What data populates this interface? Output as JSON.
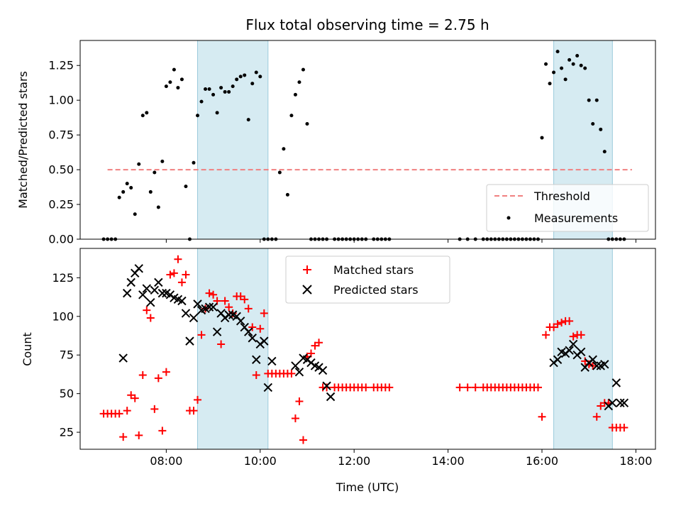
{
  "chart_data": [
    {
      "type": "scatter",
      "title": "Flux total observing time = 2.75 h",
      "xlabel": "",
      "ylabel": "Matched/Predicted stars",
      "xlim": [
        "06:10",
        "18:25"
      ],
      "ylim": [
        0,
        1.43
      ],
      "yticks": [
        "0.00",
        "0.25",
        "0.50",
        "0.75",
        "1.00",
        "1.25"
      ],
      "legend": {
        "placement": "lower-right",
        "entries": [
          {
            "name": "Threshold",
            "marker": "dashed-line",
            "color": "#f08080"
          },
          {
            "name": "Measurements",
            "marker": "dot",
            "color": "#000000"
          }
        ]
      },
      "shaded_spans": [
        [
          "08:40",
          "10:10"
        ],
        [
          "16:15",
          "17:30"
        ]
      ],
      "threshold": {
        "name": "Threshold",
        "y": 0.5,
        "x_range": [
          "06:45",
          "17:55"
        ],
        "color": "#f08080"
      },
      "series": [
        {
          "name": "Measurements",
          "color": "#000000",
          "x": [
            "06:40",
            "06:45",
            "06:50",
            "06:55",
            "07:00",
            "07:05",
            "07:10",
            "07:15",
            "07:20",
            "07:25",
            "07:30",
            "07:35",
            "07:40",
            "07:45",
            "07:50",
            "07:55",
            "08:00",
            "08:05",
            "08:10",
            "08:15",
            "08:20",
            "08:25",
            "08:30",
            "08:35",
            "08:40",
            "08:45",
            "08:50",
            "08:55",
            "09:00",
            "09:05",
            "09:10",
            "09:15",
            "09:20",
            "09:25",
            "09:30",
            "09:35",
            "09:40",
            "09:45",
            "09:50",
            "09:55",
            "10:00",
            "10:05",
            "10:10",
            "10:15",
            "10:20",
            "10:25",
            "10:30",
            "10:35",
            "10:40",
            "10:45",
            "10:50",
            "10:55",
            "11:00",
            "11:05",
            "11:10",
            "11:15",
            "11:20",
            "11:25",
            "11:35",
            "11:40",
            "11:45",
            "11:50",
            "11:55",
            "12:00",
            "12:05",
            "12:10",
            "12:15",
            "12:25",
            "12:30",
            "12:35",
            "12:40",
            "12:45",
            "14:15",
            "14:25",
            "14:35",
            "14:45",
            "14:50",
            "14:55",
            "15:00",
            "15:05",
            "15:10",
            "15:15",
            "15:20",
            "15:25",
            "15:30",
            "15:35",
            "15:40",
            "15:45",
            "15:50",
            "15:55",
            "16:00",
            "16:05",
            "16:10",
            "16:15",
            "16:20",
            "16:25",
            "16:30",
            "16:35",
            "16:40",
            "16:45",
            "16:50",
            "16:55",
            "17:00",
            "17:05",
            "17:10",
            "17:15",
            "17:20",
            "17:25",
            "17:30",
            "17:35",
            "17:40",
            "17:45"
          ],
          "y": [
            0.0,
            0.0,
            0.0,
            0.0,
            0.3,
            0.34,
            0.4,
            0.37,
            0.18,
            0.54,
            0.89,
            0.91,
            0.34,
            0.48,
            0.23,
            0.56,
            1.1,
            1.13,
            1.22,
            1.09,
            1.15,
            0.38,
            0.0,
            0.55,
            0.89,
            0.99,
            1.08,
            1.08,
            1.04,
            0.91,
            1.09,
            1.06,
            1.06,
            1.1,
            1.15,
            1.17,
            1.18,
            0.86,
            1.12,
            1.2,
            1.17,
            0.0,
            0.0,
            0.0,
            0.0,
            0.48,
            0.65,
            0.32,
            0.89,
            1.04,
            1.13,
            1.22,
            0.83,
            0.0,
            0.0,
            0.0,
            0.0,
            0.0,
            0.0,
            0.0,
            0.0,
            0.0,
            0.0,
            0.0,
            0.0,
            0.0,
            0.0,
            0.0,
            0.0,
            0.0,
            0.0,
            0.0,
            0.0,
            0.0,
            0.0,
            0.0,
            0.0,
            0.0,
            0.0,
            0.0,
            0.0,
            0.0,
            0.0,
            0.0,
            0.0,
            0.0,
            0.0,
            0.0,
            0.0,
            0.0,
            0.73,
            1.26,
            1.12,
            1.2,
            1.35,
            1.23,
            1.15,
            1.29,
            1.26,
            1.32,
            1.25,
            1.23,
            1.0,
            0.83,
            1.0,
            0.79,
            0.63,
            0.0,
            0.0,
            0.0,
            0.0,
            0.0
          ]
        }
      ]
    },
    {
      "type": "scatter",
      "title": "",
      "xlabel": "Time (UTC)",
      "ylabel": "Count",
      "xlim": [
        "06:10",
        "18:25"
      ],
      "ylim": [
        14,
        144
      ],
      "yticks": [
        "25",
        "50",
        "75",
        "100",
        "125"
      ],
      "xticks": [
        "08:00",
        "10:00",
        "12:00",
        "14:00",
        "16:00",
        "18:00"
      ],
      "legend": {
        "placement": "upper-center",
        "entries": [
          {
            "name": "Matched stars",
            "marker": "plus",
            "color": "#ff0000"
          },
          {
            "name": "Predicted stars",
            "marker": "x",
            "color": "#000000"
          }
        ]
      },
      "shaded_spans": [
        [
          "08:40",
          "10:10"
        ],
        [
          "16:15",
          "17:30"
        ]
      ],
      "series": [
        {
          "name": "Matched stars",
          "color": "#ff0000",
          "x": [
            "06:40",
            "06:45",
            "06:50",
            "06:55",
            "07:00",
            "07:05",
            "07:10",
            "07:15",
            "07:20",
            "07:25",
            "07:30",
            "07:35",
            "07:40",
            "07:45",
            "07:50",
            "07:55",
            "08:00",
            "08:05",
            "08:10",
            "08:15",
            "08:20",
            "08:25",
            "08:30",
            "08:35",
            "08:40",
            "08:45",
            "08:50",
            "08:55",
            "09:00",
            "09:05",
            "09:10",
            "09:15",
            "09:20",
            "09:25",
            "09:30",
            "09:35",
            "09:40",
            "09:45",
            "09:50",
            "09:55",
            "10:00",
            "10:05",
            "10:10",
            "10:15",
            "10:20",
            "10:25",
            "10:30",
            "10:35",
            "10:40",
            "10:45",
            "10:50",
            "10:55",
            "11:00",
            "11:05",
            "11:10",
            "11:15",
            "11:20",
            "11:25",
            "11:35",
            "11:40",
            "11:45",
            "11:50",
            "11:55",
            "12:00",
            "12:05",
            "12:10",
            "12:15",
            "12:25",
            "12:30",
            "12:35",
            "12:40",
            "12:45",
            "14:15",
            "14:25",
            "14:35",
            "14:45",
            "14:50",
            "14:55",
            "15:00",
            "15:05",
            "15:10",
            "15:15",
            "15:20",
            "15:25",
            "15:30",
            "15:35",
            "15:40",
            "15:45",
            "15:50",
            "15:55",
            "16:00",
            "16:05",
            "16:10",
            "16:15",
            "16:20",
            "16:25",
            "16:30",
            "16:35",
            "16:40",
            "16:45",
            "16:50",
            "16:55",
            "17:00",
            "17:05",
            "17:10",
            "17:15",
            "17:20",
            "17:25",
            "17:30",
            "17:35",
            "17:40",
            "17:45"
          ],
          "y": [
            37,
            37,
            37,
            37,
            37,
            22,
            39,
            49,
            47,
            23,
            62,
            104,
            99,
            40,
            60,
            26,
            64,
            127,
            128,
            137,
            122,
            127,
            39,
            39,
            46,
            88,
            105,
            115,
            114,
            110,
            82,
            110,
            106,
            102,
            113,
            113,
            111,
            105,
            93,
            62,
            92,
            102,
            63,
            63,
            63,
            63,
            63,
            63,
            63,
            34,
            45,
            20,
            74,
            76,
            81,
            83,
            54,
            54,
            54,
            54,
            54,
            54,
            54,
            54,
            54,
            54,
            54,
            54,
            54,
            54,
            54,
            54,
            54,
            54,
            54,
            54,
            54,
            54,
            54,
            54,
            54,
            54,
            54,
            54,
            54,
            54,
            54,
            54,
            54,
            54,
            35,
            88,
            93,
            93,
            95,
            96,
            97,
            97,
            87,
            88,
            88,
            71,
            69,
            68,
            35,
            42,
            44,
            44,
            28,
            28,
            28,
            28
          ]
        },
        {
          "name": "Predicted stars",
          "color": "#000000",
          "x": [
            "07:05",
            "07:10",
            "07:15",
            "07:20",
            "07:25",
            "07:30",
            "07:35",
            "07:40",
            "07:45",
            "07:50",
            "07:55",
            "08:00",
            "08:05",
            "08:10",
            "08:15",
            "08:20",
            "08:25",
            "08:30",
            "08:35",
            "08:40",
            "08:45",
            "08:50",
            "08:55",
            "09:00",
            "09:05",
            "09:10",
            "09:15",
            "09:20",
            "09:25",
            "09:30",
            "09:35",
            "09:40",
            "09:45",
            "09:50",
            "09:55",
            "10:00",
            "10:05",
            "10:10",
            "10:15",
            "10:45",
            "10:50",
            "10:55",
            "11:00",
            "11:05",
            "11:10",
            "11:15",
            "11:20",
            "11:25",
            "11:30",
            "16:15",
            "16:20",
            "16:25",
            "16:30",
            "16:35",
            "16:40",
            "16:45",
            "16:50",
            "16:55",
            "17:00",
            "17:05",
            "17:10",
            "17:15",
            "17:20",
            "17:25",
            "17:30",
            "17:35",
            "17:40",
            "17:45"
          ],
          "y": [
            73,
            115,
            122,
            128,
            131,
            114,
            118,
            109,
            117,
            122,
            115,
            115,
            114,
            112,
            111,
            110,
            102,
            84,
            99,
            108,
            104,
            105,
            106,
            106,
            90,
            102,
            99,
            101,
            101,
            100,
            97,
            93,
            90,
            86,
            72,
            82,
            84,
            54,
            71,
            68,
            64,
            73,
            72,
            70,
            68,
            67,
            65,
            55,
            48,
            70,
            72,
            77,
            76,
            78,
            82,
            75,
            77,
            67,
            70,
            72,
            68,
            68,
            69,
            42,
            44,
            57,
            44,
            44
          ]
        }
      ]
    }
  ]
}
